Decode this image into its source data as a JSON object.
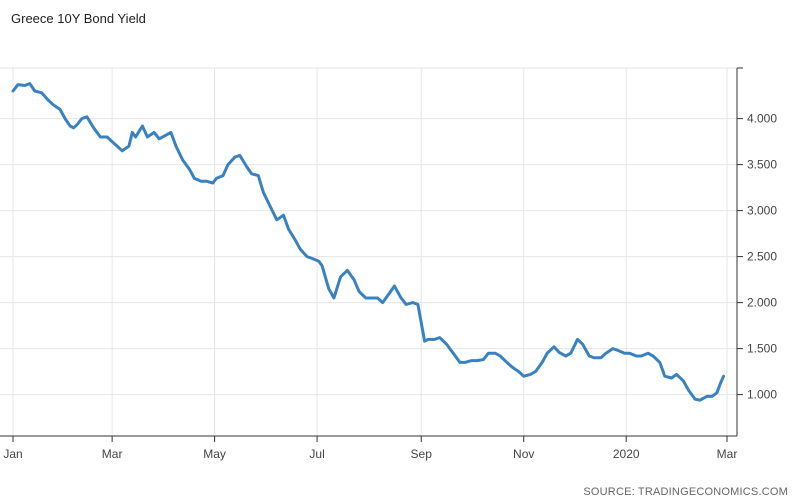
{
  "chart_data": {
    "type": "line",
    "title": "Greece 10Y Bond Yield",
    "source": "SOURCE: TRADINGECONOMICS.COM",
    "colors": {
      "line": "#3a82bf",
      "grid": "#e6e6e6",
      "axis": "#333333"
    },
    "grid": true,
    "x_ticks": [
      "Jan",
      "Mar",
      "May",
      "Jul",
      "Sep",
      "Nov",
      "2020",
      "Mar"
    ],
    "x_range": [
      "2019-01-01",
      "2020-03-01"
    ],
    "y_ticks": [
      1.0,
      1.5,
      2.0,
      2.5,
      3.0,
      3.5,
      4.0
    ],
    "y_tick_labels": [
      "1.000",
      "1.500",
      "2.000",
      "2.500",
      "3.000",
      "3.500",
      "4.000"
    ],
    "ylim": [
      0.55,
      4.55
    ],
    "y_axis_position": "right",
    "series": [
      {
        "x": [
          "2019-01-01",
          "2019-01-04",
          "2019-01-08",
          "2019-01-11",
          "2019-01-14",
          "2019-01-18",
          "2019-01-22",
          "2019-01-25",
          "2019-01-29",
          "2019-02-01",
          "2019-02-04",
          "2019-02-06",
          "2019-02-08",
          "2019-02-11",
          "2019-02-14",
          "2019-02-18",
          "2019-02-22",
          "2019-02-26",
          "2019-03-01",
          "2019-03-04",
          "2019-03-07",
          "2019-03-11",
          "2019-03-13",
          "2019-03-15",
          "2019-03-19",
          "2019-03-22",
          "2019-03-26",
          "2019-03-29",
          "2019-04-02",
          "2019-04-05",
          "2019-04-08",
          "2019-04-12",
          "2019-04-16",
          "2019-04-19",
          "2019-04-23",
          "2019-04-26",
          "2019-04-30",
          "2019-05-02",
          "2019-05-06",
          "2019-05-09",
          "2019-05-13",
          "2019-05-16",
          "2019-05-20",
          "2019-05-23",
          "2019-05-27",
          "2019-05-30",
          "2019-06-03",
          "2019-06-07",
          "2019-06-11",
          "2019-06-14",
          "2019-06-18",
          "2019-06-21",
          "2019-06-25",
          "2019-06-28",
          "2019-07-02",
          "2019-07-04",
          "2019-07-08",
          "2019-07-11",
          "2019-07-15",
          "2019-07-19",
          "2019-07-23",
          "2019-07-26",
          "2019-07-30",
          "2019-08-02",
          "2019-08-06",
          "2019-08-09",
          "2019-08-13",
          "2019-08-16",
          "2019-08-20",
          "2019-08-23",
          "2019-08-27",
          "2019-08-30",
          "2019-09-03",
          "2019-09-05",
          "2019-09-09",
          "2019-09-12",
          "2019-09-16",
          "2019-09-20",
          "2019-09-24",
          "2019-09-27",
          "2019-10-01",
          "2019-10-04",
          "2019-10-08",
          "2019-10-11",
          "2019-10-15",
          "2019-10-18",
          "2019-10-22",
          "2019-10-25",
          "2019-10-29",
          "2019-11-01",
          "2019-11-05",
          "2019-11-08",
          "2019-11-12",
          "2019-11-15",
          "2019-11-19",
          "2019-11-22",
          "2019-11-26",
          "2019-11-29",
          "2019-12-03",
          "2019-12-06",
          "2019-12-10",
          "2019-12-13",
          "2019-12-17",
          "2019-12-20",
          "2019-12-24",
          "2019-12-27",
          "2019-12-31",
          "2020-01-03",
          "2020-01-07",
          "2020-01-10",
          "2020-01-14",
          "2020-01-17",
          "2020-01-21",
          "2020-01-24",
          "2020-01-28",
          "2020-01-31",
          "2020-02-04",
          "2020-02-07",
          "2020-02-11",
          "2020-02-14",
          "2020-02-18",
          "2020-02-21",
          "2020-02-24",
          "2020-02-26",
          "2020-02-28"
        ],
        "y": [
          4.3,
          4.37,
          4.36,
          4.38,
          4.3,
          4.28,
          4.2,
          4.15,
          4.1,
          4.0,
          3.92,
          3.9,
          3.93,
          4.0,
          4.02,
          3.9,
          3.8,
          3.8,
          3.75,
          3.7,
          3.65,
          3.7,
          3.85,
          3.8,
          3.92,
          3.8,
          3.85,
          3.78,
          3.82,
          3.85,
          3.7,
          3.55,
          3.45,
          3.35,
          3.32,
          3.32,
          3.3,
          3.35,
          3.38,
          3.5,
          3.58,
          3.6,
          3.48,
          3.4,
          3.38,
          3.2,
          3.05,
          2.9,
          2.95,
          2.8,
          2.68,
          2.58,
          2.5,
          2.48,
          2.45,
          2.4,
          2.15,
          2.05,
          2.28,
          2.35,
          2.25,
          2.12,
          2.05,
          2.05,
          2.05,
          2.0,
          2.1,
          2.18,
          2.05,
          1.98,
          2.0,
          1.98,
          1.58,
          1.6,
          1.6,
          1.62,
          1.55,
          1.45,
          1.35,
          1.35,
          1.37,
          1.37,
          1.38,
          1.45,
          1.45,
          1.42,
          1.35,
          1.3,
          1.25,
          1.2,
          1.22,
          1.25,
          1.35,
          1.45,
          1.52,
          1.46,
          1.42,
          1.45,
          1.6,
          1.55,
          1.42,
          1.4,
          1.4,
          1.45,
          1.5,
          1.48,
          1.45,
          1.45,
          1.42,
          1.42,
          1.45,
          1.42,
          1.35,
          1.2,
          1.18,
          1.22,
          1.15,
          1.05,
          0.95,
          0.94,
          0.98,
          0.98,
          1.02,
          1.12,
          1.2
        ]
      }
    ]
  }
}
